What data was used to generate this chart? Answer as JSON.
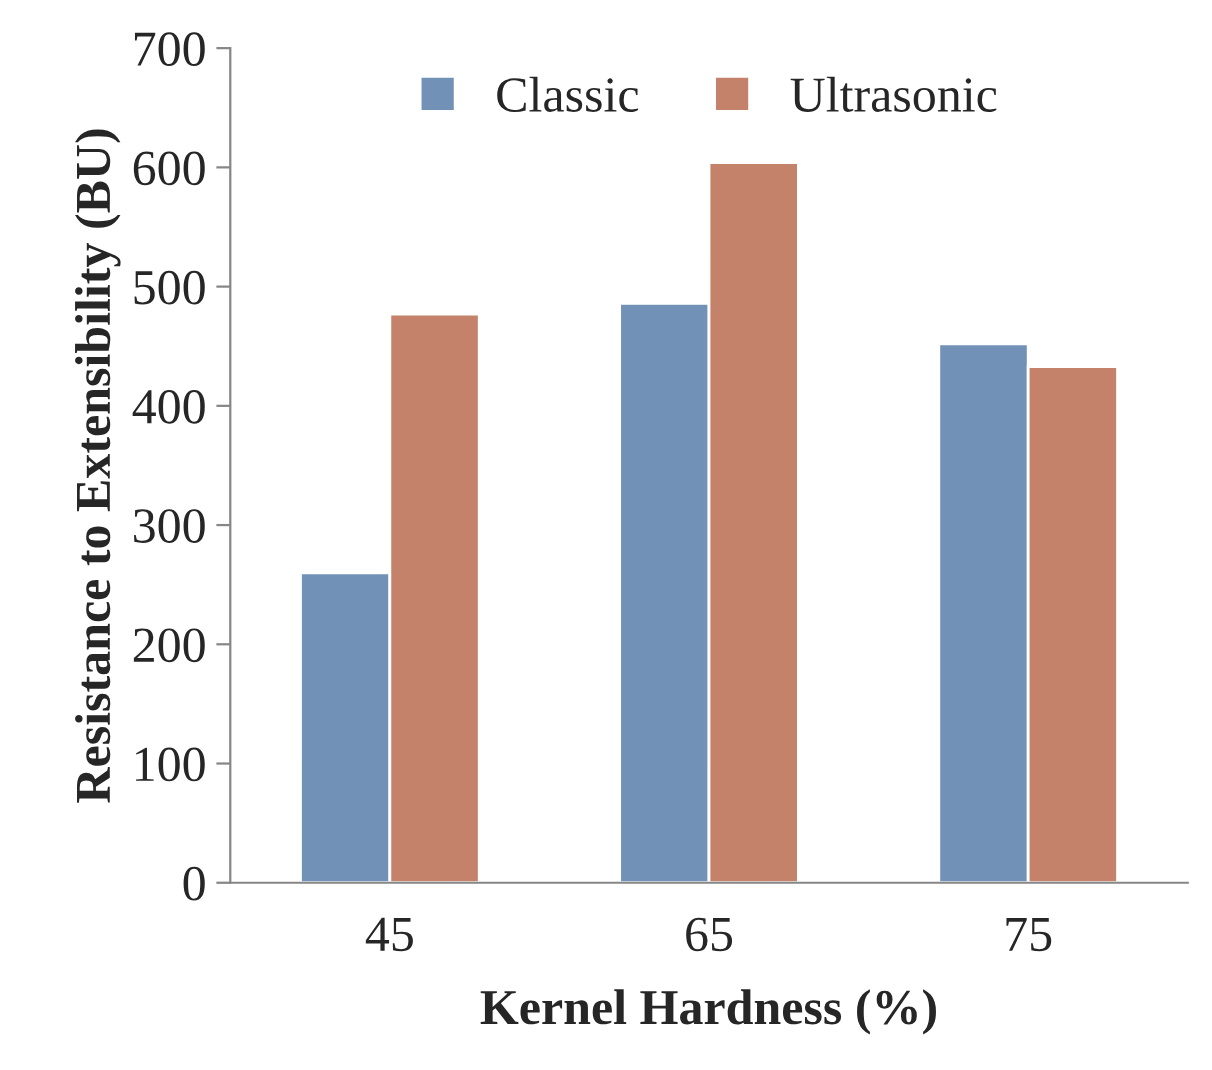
{
  "chart_data": {
    "type": "bar",
    "xlabel": "Kernel Hardness (%)",
    "ylabel": "Resistance to Extensibility (BU)",
    "categories": [
      "45",
      "65",
      "75"
    ],
    "series": [
      {
        "name": "Classic",
        "color": "#7191b7",
        "values": [
          260,
          486,
          452
        ]
      },
      {
        "name": "Ultrasonic",
        "color": "#c5826a",
        "values": [
          477,
          604,
          433
        ]
      }
    ],
    "ylim": [
      0,
      700
    ],
    "yticks": [
      0,
      100,
      200,
      300,
      400,
      500,
      600,
      700
    ],
    "grid": false,
    "legend": "top"
  }
}
